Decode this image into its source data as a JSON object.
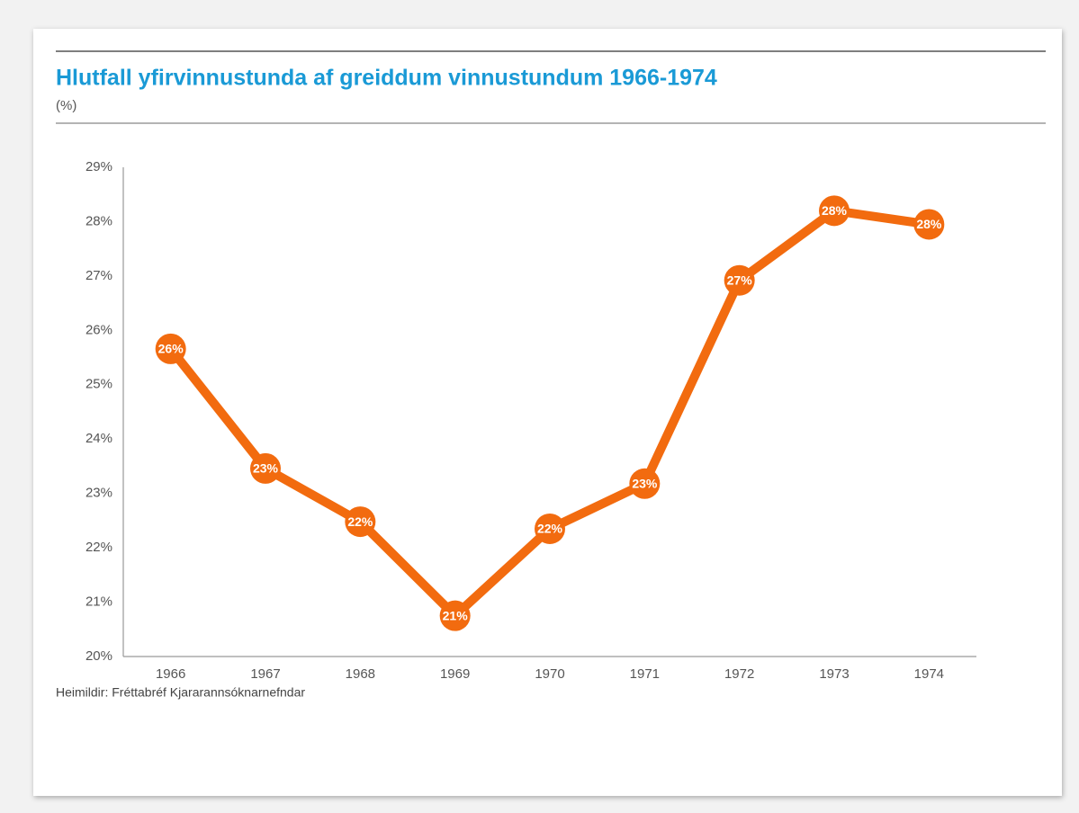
{
  "chart_data": {
    "type": "line",
    "title": "Hlutfall yfirvinnustunda af greiddum vinnustundum 1966-1974",
    "subtitle": "(%)",
    "source": "Heimildir: Fréttabréf Kjararannsóknarnefndar",
    "categories": [
      "1966",
      "1967",
      "1968",
      "1969",
      "1970",
      "1971",
      "1972",
      "1973",
      "1974"
    ],
    "series": [
      {
        "name": "Hlutfall yfirvinnustunda",
        "color": "#f26b0f",
        "values": [
          25.66,
          23.46,
          22.48,
          20.75,
          22.35,
          23.18,
          26.92,
          28.2,
          27.95
        ],
        "value_labels": [
          "26%",
          "23%",
          "22%",
          "21%",
          "22%",
          "23%",
          "27%",
          "28%",
          "28%"
        ]
      }
    ],
    "ylim": [
      20,
      29
    ],
    "yticks": [
      {
        "value": 20,
        "label": "20%"
      },
      {
        "value": 21,
        "label": "21%"
      },
      {
        "value": 22,
        "label": "22%"
      },
      {
        "value": 23,
        "label": "23%"
      },
      {
        "value": 24,
        "label": "24%"
      },
      {
        "value": 25,
        "label": "25%"
      },
      {
        "value": 26,
        "label": "26%"
      },
      {
        "value": 27,
        "label": "27%"
      },
      {
        "value": 28,
        "label": "28%"
      },
      {
        "value": 29,
        "label": "29%"
      }
    ],
    "grid": false
  }
}
